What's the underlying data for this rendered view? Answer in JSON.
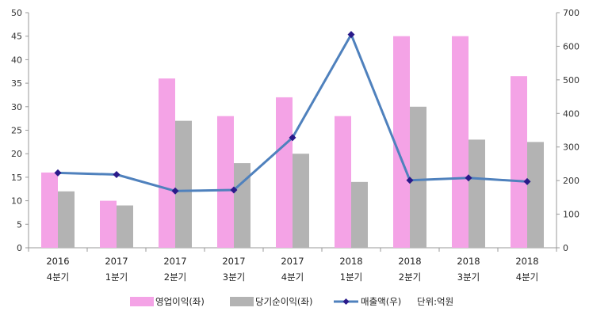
{
  "chart_data": {
    "type": "bar",
    "categories": [
      [
        "2016",
        "4분기"
      ],
      [
        "2017",
        "1분기"
      ],
      [
        "2017",
        "2분기"
      ],
      [
        "2017",
        "3분기"
      ],
      [
        "2017",
        "4분기"
      ],
      [
        "2018",
        "1분기"
      ],
      [
        "2018",
        "2분기"
      ],
      [
        "2018",
        "3분기"
      ],
      [
        "2018",
        "4분기"
      ]
    ],
    "left_axis": {
      "min": 0,
      "max": 50,
      "step": 5
    },
    "right_axis": {
      "min": 0,
      "max": 700,
      "step": 100
    },
    "grid": false,
    "legend_position": "bottom",
    "unit_note": "단위:억원",
    "series": [
      {
        "name": "영업이익(좌)",
        "kind": "bar",
        "axis": "left",
        "color": "#f4a3e6",
        "values": [
          16,
          10,
          36,
          28,
          32,
          28,
          45,
          45,
          36.5
        ]
      },
      {
        "name": "당기순이익(좌)",
        "kind": "bar",
        "axis": "left",
        "color": "#b3b3b3",
        "values": [
          12,
          9,
          27,
          18,
          20,
          14,
          30,
          23,
          22.5
        ]
      },
      {
        "name": "매출액(우)",
        "kind": "line",
        "axis": "right",
        "color": "#4f81bd",
        "marker_color": "#2a1a8a",
        "values": [
          223,
          218,
          169,
          172,
          328,
          635,
          201,
          208,
          197
        ]
      }
    ]
  }
}
